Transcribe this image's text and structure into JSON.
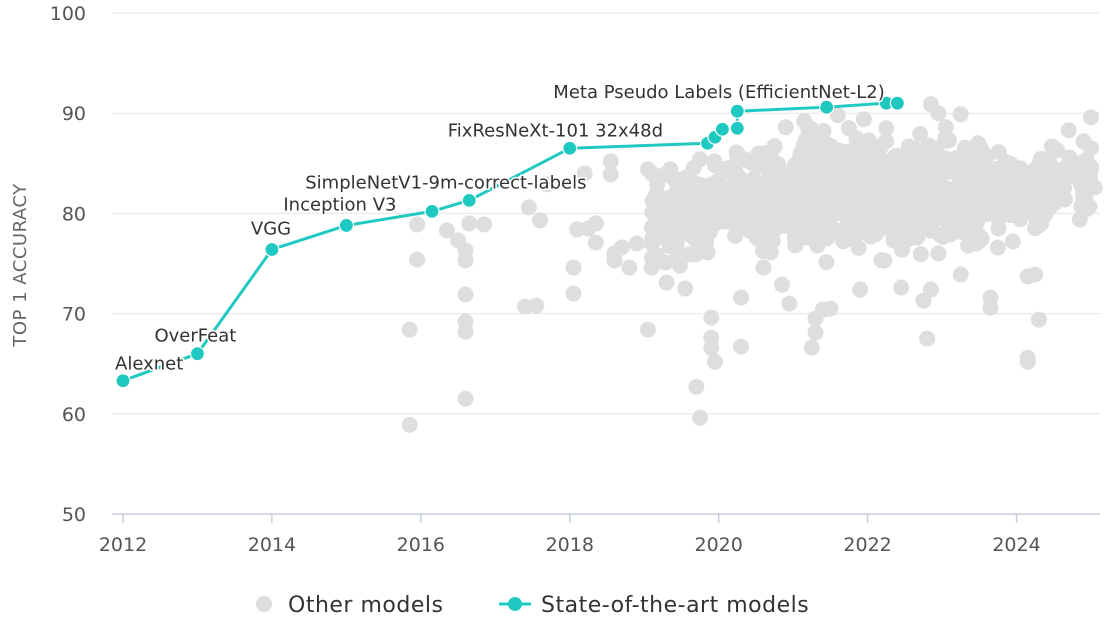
{
  "chart_data": {
    "type": "scatter",
    "ylabel": "TOP 1 ACCURACY",
    "xlim": [
      2012,
      2025
    ],
    "ylim": [
      50,
      100
    ],
    "x_ticks": [
      "2012",
      "2014",
      "2016",
      "2018",
      "2020",
      "2022",
      "2024"
    ],
    "y_ticks": [
      "50",
      "60",
      "70",
      "80",
      "90",
      "100"
    ],
    "grid": true,
    "legend_position": "bottom",
    "series": [
      {
        "name": "Other models",
        "color": "#dedede",
        "points": [
          [
            2015.85,
            68.4
          ],
          [
            2015.85,
            58.9
          ],
          [
            2015.95,
            78.9
          ],
          [
            2015.95,
            75.4
          ],
          [
            2016.35,
            78.3
          ],
          [
            2016.5,
            77.3
          ],
          [
            2016.6,
            76.3
          ],
          [
            2016.6,
            75.3
          ],
          [
            2016.6,
            71.9
          ],
          [
            2016.6,
            69.2
          ],
          [
            2016.6,
            68.2
          ],
          [
            2016.6,
            61.5
          ],
          [
            2016.65,
            79.0
          ],
          [
            2016.85,
            78.9
          ],
          [
            2017.4,
            70.7
          ],
          [
            2017.55,
            70.8
          ],
          [
            2017.6,
            79.3
          ],
          [
            2017.45,
            80.6
          ],
          [
            2017.7,
            82.9
          ],
          [
            2018.05,
            74.6
          ],
          [
            2018.05,
            72.0
          ],
          [
            2018.1,
            78.4
          ],
          [
            2018.2,
            84.0
          ],
          [
            2018.25,
            78.5
          ],
          [
            2018.35,
            79.0
          ],
          [
            2018.35,
            77.1
          ],
          [
            2018.55,
            85.2
          ],
          [
            2018.55,
            83.9
          ],
          [
            2018.6,
            76.0
          ],
          [
            2018.6,
            75.3
          ],
          [
            2018.7,
            76.6
          ],
          [
            2018.8,
            74.6
          ],
          [
            2018.9,
            77.0
          ],
          [
            2019.05,
            68.4
          ],
          [
            2019.1,
            74.6
          ],
          [
            2019.15,
            79.8
          ],
          [
            2019.2,
            81.3
          ],
          [
            2019.3,
            73.1
          ],
          [
            2019.55,
            72.5
          ],
          [
            2019.7,
            62.7
          ],
          [
            2019.75,
            59.6
          ],
          [
            2019.9,
            69.6
          ],
          [
            2019.9,
            67.6
          ],
          [
            2019.9,
            66.6
          ],
          [
            2019.95,
            65.2
          ],
          [
            2020.3,
            66.7
          ],
          [
            2020.3,
            71.6
          ],
          [
            2020.6,
            74.6
          ],
          [
            2020.7,
            76.1
          ],
          [
            2020.75,
            78.4
          ],
          [
            2020.85,
            72.9
          ],
          [
            2020.95,
            71.0
          ],
          [
            2021.25,
            66.6
          ],
          [
            2021.3,
            68.1
          ],
          [
            2021.3,
            69.5
          ],
          [
            2021.4,
            70.4
          ],
          [
            2021.5,
            70.5
          ],
          [
            2021.9,
            72.4
          ],
          [
            2022.35,
            79.5
          ],
          [
            2022.45,
            72.6
          ],
          [
            2022.65,
            79.3
          ],
          [
            2022.75,
            71.3
          ],
          [
            2022.8,
            67.5
          ],
          [
            2022.85,
            72.4
          ],
          [
            2022.95,
            76.0
          ],
          [
            2023.15,
            84.9
          ],
          [
            2023.25,
            73.9
          ],
          [
            2023.35,
            76.8
          ],
          [
            2023.65,
            71.6
          ],
          [
            2023.65,
            70.6
          ],
          [
            2023.75,
            76.6
          ],
          [
            2024.15,
            73.7
          ],
          [
            2024.25,
            73.9
          ],
          [
            2024.15,
            65.6
          ],
          [
            2024.15,
            65.2
          ],
          [
            2024.3,
            69.4
          ],
          [
            2024.3,
            78.8
          ],
          [
            2024.45,
            80.6
          ],
          [
            2024.7,
            88.3
          ],
          [
            2024.85,
            85.0
          ],
          [
            2024.9,
            87.2
          ],
          [
            2024.95,
            83.4
          ],
          [
            2025.0,
            89.6
          ],
          [
            2025.0,
            86.5
          ],
          [
            2025.0,
            84.6
          ],
          [
            2025.05,
            82.6
          ],
          [
            2024.75,
            83.8
          ],
          [
            2024.6,
            82.2
          ],
          [
            2024.55,
            84.3
          ],
          [
            2024.85,
            79.4
          ],
          [
            2024.05,
            84.5
          ],
          [
            2023.95,
            77.2
          ],
          [
            2023.55,
            83.4
          ],
          [
            2023.25,
            89.9
          ],
          [
            2023.05,
            88.6
          ],
          [
            2023.05,
            87.6
          ],
          [
            2022.95,
            90.0
          ],
          [
            2022.85,
            90.9
          ],
          [
            2021.95,
            89.4
          ],
          [
            2022.25,
            88.5
          ],
          [
            2021.85,
            87.5
          ],
          [
            2021.6,
            89.8
          ],
          [
            2021.25,
            88.4
          ],
          [
            2020.9,
            88.6
          ],
          [
            2020.75,
            86.7
          ],
          [
            2021.1,
            86.0
          ],
          [
            2020.8,
            84.9
          ],
          [
            2021.15,
            89.2
          ],
          [
            2020.55,
            85.0
          ],
          [
            2020.35,
            85.4
          ],
          [
            2019.95,
            84.9
          ],
          [
            2019.75,
            85.4
          ],
          [
            2019.35,
            84.4
          ],
          [
            2019.05,
            84.4
          ],
          [
            2019.55,
            81.0
          ],
          [
            2019.65,
            78.3
          ],
          [
            2019.85,
            76.1
          ],
          [
            2019.25,
            80.6
          ],
          [
            2020.2,
            80.6
          ]
        ],
        "clusters": [
          {
            "x": [
              2019.1,
              2019.9
            ],
            "y": [
              74.5,
              85.5
            ],
            "n": 140,
            "seed": 11
          },
          {
            "x": [
              2019.9,
              2020.5
            ],
            "y": [
              76.0,
              87.5
            ],
            "n": 90,
            "seed": 23
          },
          {
            "x": [
              2020.5,
              2021.1
            ],
            "y": [
              75.5,
              87.5
            ],
            "n": 110,
            "seed": 37
          },
          {
            "x": [
              2021.0,
              2022.6
            ],
            "y": [
              74.5,
              89.5
            ],
            "n": 520,
            "seed": 41
          },
          {
            "x": [
              2022.5,
              2023.6
            ],
            "y": [
              75.0,
              89.5
            ],
            "n": 180,
            "seed": 53
          },
          {
            "x": [
              2023.4,
              2024.4
            ],
            "y": [
              77.5,
              87.0
            ],
            "n": 110,
            "seed": 67
          },
          {
            "x": [
              2024.3,
              2025.0
            ],
            "y": [
              79.0,
              88.0
            ],
            "n": 60,
            "seed": 79
          }
        ]
      },
      {
        "name": "State-of-the-art models",
        "color": "#1fc9c2",
        "points": [
          [
            2012.0,
            63.3
          ],
          [
            2013.0,
            66.0
          ],
          [
            2014.0,
            76.4
          ],
          [
            2015.0,
            78.8
          ],
          [
            2016.15,
            80.2
          ],
          [
            2016.65,
            81.3
          ],
          [
            2018.0,
            86.5
          ],
          [
            2019.85,
            87.0
          ],
          [
            2019.95,
            87.6
          ],
          [
            2020.05,
            88.4
          ],
          [
            2020.25,
            88.5
          ],
          [
            2020.25,
            90.2
          ],
          [
            2021.45,
            90.6
          ],
          [
            2022.25,
            91.0
          ],
          [
            2022.4,
            91.0
          ]
        ]
      }
    ],
    "annotations": [
      {
        "text": "Alexnet",
        "x": 2012.0,
        "y": 63.3
      },
      {
        "text": "OverFeat",
        "x": 2013.0,
        "y": 66.0
      },
      {
        "text": "VGG",
        "x": 2014.0,
        "y": 76.4
      },
      {
        "text": "Inception V3",
        "x": 2015.0,
        "y": 78.8
      },
      {
        "text": "SimpleNetV1-9m-correct-labels",
        "x": 2016.65,
        "y": 81.3
      },
      {
        "text": "FixResNeXt-101 32x48d",
        "x": 2018.0,
        "y": 86.5
      },
      {
        "text": "Meta Pseudo Labels (EfficientNet-L2)",
        "x": 2020.25,
        "y": 90.2
      }
    ]
  }
}
